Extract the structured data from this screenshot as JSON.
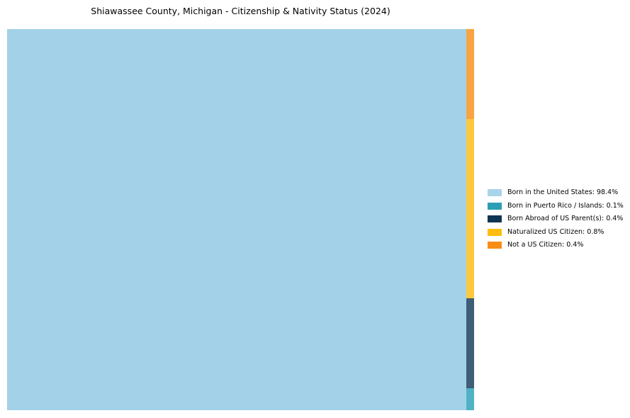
{
  "chart": {
    "background_color": "#ffffff",
    "text_color": "#000000"
  },
  "chart_data": {
    "type": "treemap",
    "title": "Shiawassee County, Michigan - Citizenship & Nativity Status (2024)",
    "unit": "%",
    "categories": [
      "Born in the United States",
      "Born in Puerto Rico / Islands",
      "Born Abroad of US Parent(s)",
      "Naturalized US Citizen",
      "Not a US Citizen"
    ],
    "values": [
      98.4,
      0.1,
      0.4,
      0.8,
      0.4
    ],
    "legend_position": "right",
    "layout_hint": {
      "main_segment": "Born in the United States",
      "strip_order_top_to_bottom": [
        "Not a US Citizen",
        "Naturalized US Citizen",
        "Born Abroad of US Parent(s)",
        "Born in Puerto Rico / Islands"
      ]
    },
    "segments": [
      {
        "label": "Born in the United States",
        "value": 98.4,
        "legend_label": "Born in the United States: 98.4%",
        "fill": "#A3D2E8",
        "swatch": "#A9D4E9"
      },
      {
        "label": "Born in Puerto Rico / Islands",
        "value": 0.1,
        "legend_label": "Born in Puerto Rico / Islands: 0.1%",
        "fill": "#52B1C5",
        "swatch": "#2B9EB5"
      },
      {
        "label": "Born Abroad of US Parent(s)",
        "value": 0.4,
        "legend_label": "Born Abroad of US Parent(s): 0.4%",
        "fill": "#3F5E78",
        "swatch": "#0F3552"
      },
      {
        "label": "Naturalized US Citizen",
        "value": 0.8,
        "legend_label": "Naturalized US Citizen: 0.8%",
        "fill": "#FDC83E",
        "swatch": "#FEBD10"
      },
      {
        "label": "Not a US Citizen",
        "value": 0.4,
        "legend_label": "Not a US Citizen: 0.4%",
        "fill": "#F9A443",
        "swatch": "#F78E16"
      }
    ]
  }
}
